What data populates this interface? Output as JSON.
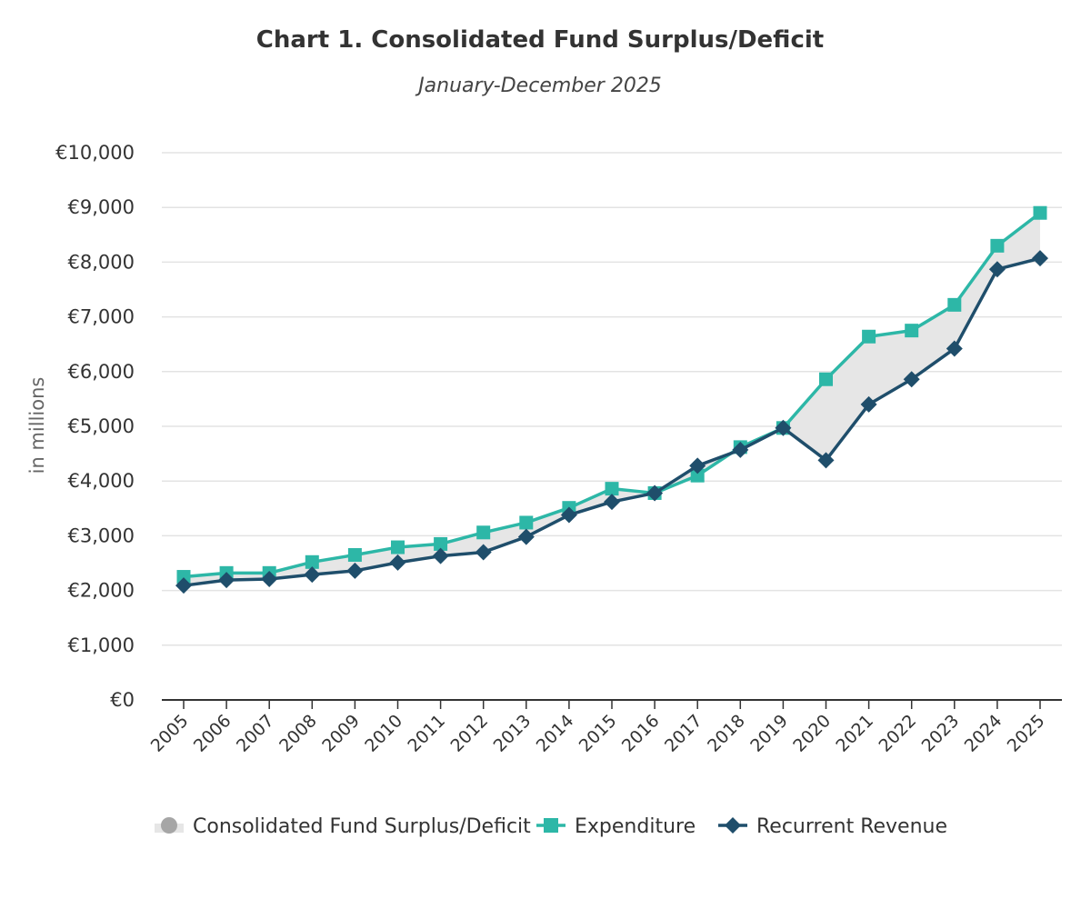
{
  "chart_data": {
    "type": "line",
    "title": "Chart 1. Consolidated Fund Surplus/Deficit",
    "subtitle": "January-December 2025",
    "xlabel": "",
    "ylabel": "in millions",
    "ylim": [
      0,
      10000
    ],
    "y_tick_values": [
      0,
      1000,
      2000,
      3000,
      4000,
      5000,
      6000,
      7000,
      8000,
      9000,
      10000
    ],
    "y_tick_labels": [
      "€0",
      "€1,000",
      "€2,000",
      "€3,000",
      "€4,000",
      "€5,000",
      "€6,000",
      "€7,000",
      "€8,000",
      "€9,000",
      "€10,000"
    ],
    "grid": true,
    "legend_position": "bottom",
    "categories": [
      "2005",
      "2006",
      "2007",
      "2008",
      "2009",
      "2010",
      "2011",
      "2012",
      "2013",
      "2014",
      "2015",
      "2016",
      "2017",
      "2018",
      "2019",
      "2020",
      "2021",
      "2022",
      "2023",
      "2024",
      "2025"
    ],
    "series": [
      {
        "name": "Consolidated Fund Surplus/Deficit",
        "kind": "area-range",
        "color": "#e6e6e6",
        "between": [
          "Expenditure",
          "Recurrent Revenue"
        ]
      },
      {
        "name": "Expenditure",
        "marker": "square",
        "color": "#2db7a7",
        "values": [
          2250,
          2320,
          2320,
          2520,
          2650,
          2790,
          2850,
          3060,
          3240,
          3510,
          3860,
          3780,
          4100,
          4620,
          4970,
          5860,
          6640,
          6750,
          7220,
          8300,
          8900
        ]
      },
      {
        "name": "Recurrent Revenue",
        "marker": "diamond",
        "color": "#1f4e6b",
        "values": [
          2090,
          2190,
          2210,
          2290,
          2360,
          2510,
          2630,
          2700,
          2980,
          3380,
          3620,
          3780,
          4280,
          4570,
          4970,
          4380,
          5400,
          5860,
          6420,
          7870,
          8070
        ]
      }
    ]
  }
}
